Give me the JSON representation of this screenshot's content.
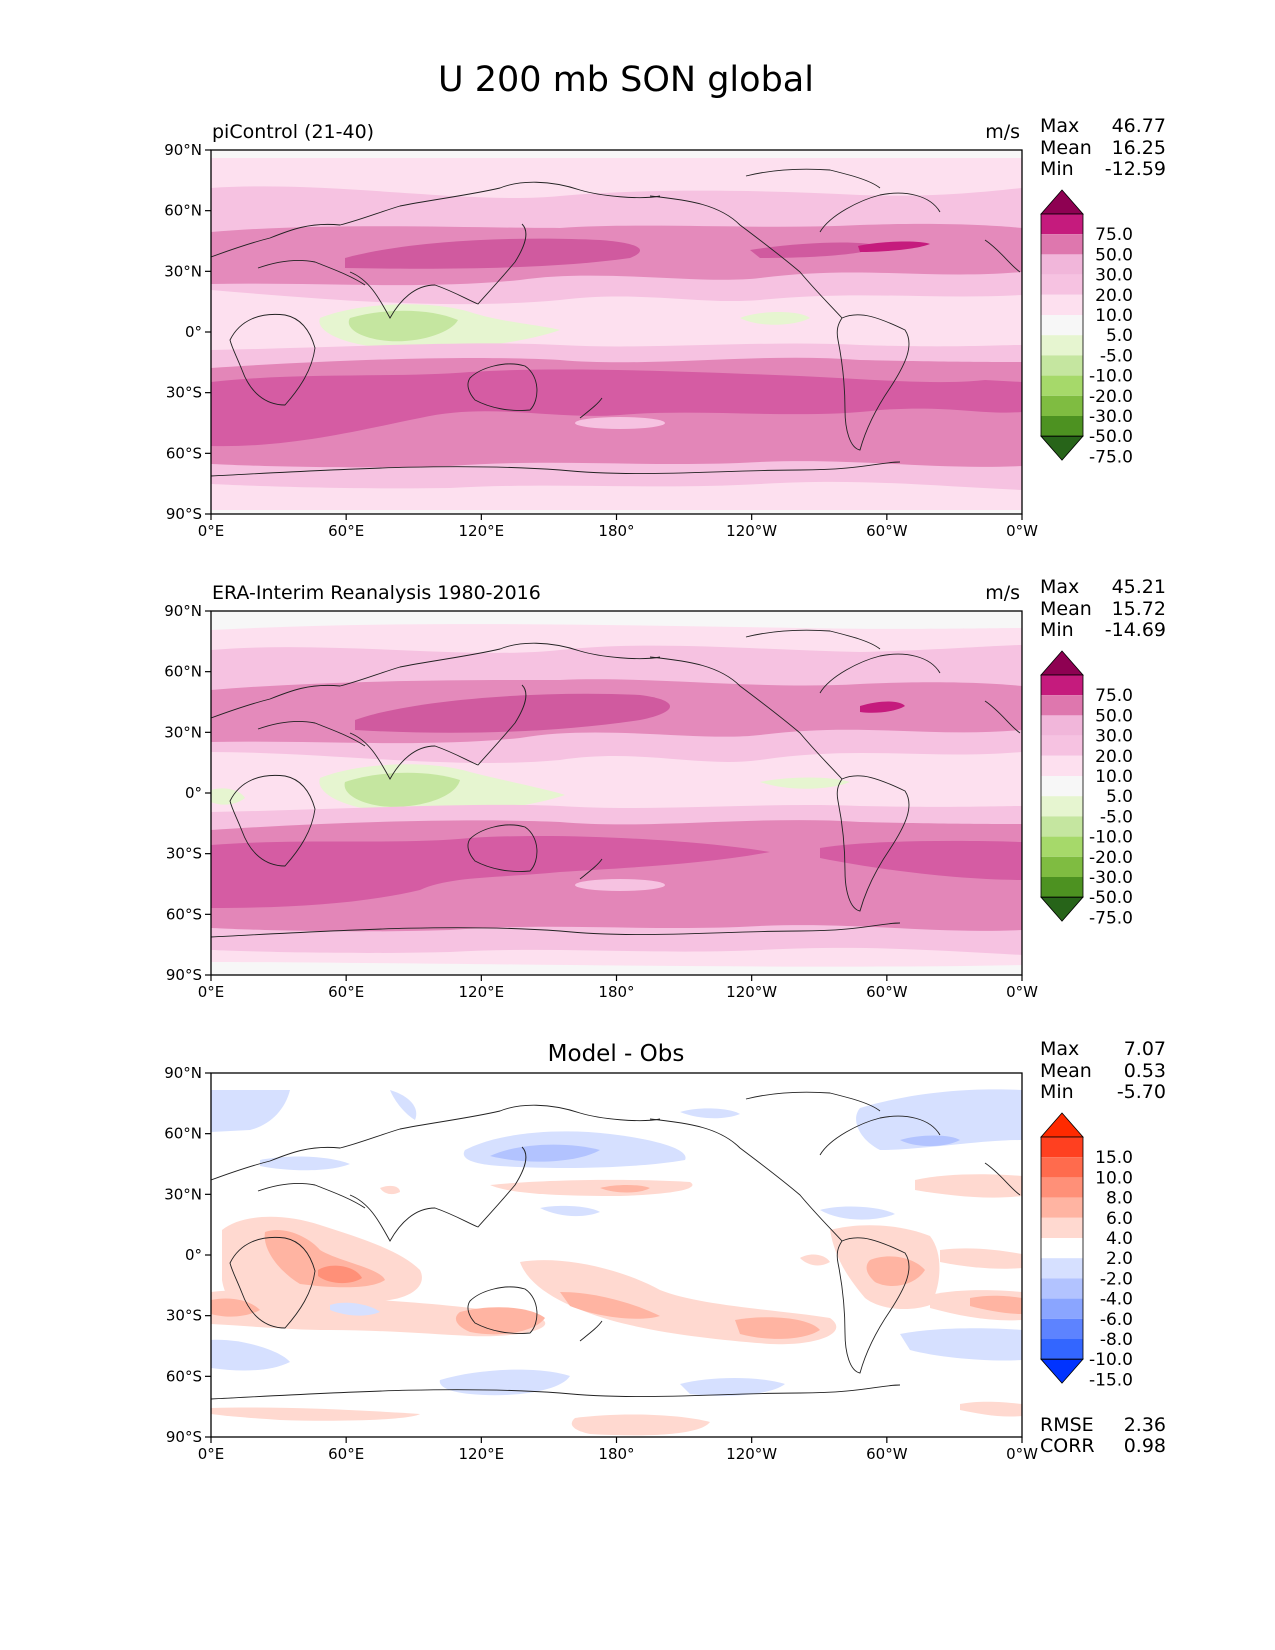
{
  "figure_title": "U 200 mb SON global",
  "colors": {
    "sequential": [
      "#276419",
      "#4d9221",
      "#7fbc41",
      "#a6d96a",
      "#c5e6a0",
      "#e6f5d0",
      "#f7f7f7",
      "#fde0ef",
      "#f6c2e1",
      "#f1b6da",
      "#de77ae",
      "#c51b7d",
      "#8e0152"
    ],
    "diverging": [
      "#0033ff",
      "#3366ff",
      "#5d83ff",
      "#8aa5ff",
      "#b2c3ff",
      "#d6e0ff",
      "#ffffff",
      "#ffd9d0",
      "#ffb4a2",
      "#ff9078",
      "#ff6b4d",
      "#ff4020",
      "#ff2a00"
    ]
  },
  "panels": [
    {
      "title": "piControl (21-40)",
      "units": "m/s",
      "stats": {
        "max_label": "Max",
        "max": "46.77",
        "mean_label": "Mean",
        "mean": "16.25",
        "min_label": "Min",
        "min": "-12.59"
      },
      "colorbar": [
        "75.0",
        "50.0",
        "30.0",
        "20.0",
        "10.0",
        "5.0",
        "-5.0",
        "-10.0",
        "-20.0",
        "-30.0",
        "-50.0",
        "-75.0"
      ]
    },
    {
      "title": "ERA-Interim Reanalysis 1980-2016",
      "units": "m/s",
      "stats": {
        "max_label": "Max",
        "max": "45.21",
        "mean_label": "Mean",
        "mean": "15.72",
        "min_label": "Min",
        "min": "-14.69"
      },
      "colorbar": [
        "75.0",
        "50.0",
        "30.0",
        "20.0",
        "10.0",
        "5.0",
        "-5.0",
        "-10.0",
        "-20.0",
        "-30.0",
        "-50.0",
        "-75.0"
      ]
    },
    {
      "title": "Model - Obs",
      "units": "",
      "stats": {
        "max_label": "Max",
        "max": "7.07",
        "mean_label": "Mean",
        "mean": "0.53",
        "min_label": "Min",
        "min": "-5.70"
      },
      "colorbar": [
        "15.0",
        "10.0",
        "8.0",
        "6.0",
        "4.0",
        "2.0",
        "-2.0",
        "-4.0",
        "-6.0",
        "-8.0",
        "-10.0",
        "-15.0"
      ],
      "rmse_label": "RMSE",
      "rmse": "2.36",
      "corr_label": "CORR",
      "corr": "0.98"
    }
  ],
  "axes": {
    "x_ticks": [
      "0°E",
      "60°E",
      "120°E",
      "180°",
      "120°W",
      "60°W",
      "0°W"
    ],
    "y_ticks": [
      "90°N",
      "60°N",
      "30°N",
      "0°",
      "30°S",
      "60°S",
      "90°S"
    ]
  },
  "chart_data": [
    {
      "type": "heatmap",
      "title": "piControl (21-40)",
      "variable": "U 200 mb",
      "season": "SON",
      "units": "m/s",
      "xlim": [
        0,
        360
      ],
      "ylim": [
        -90,
        90
      ],
      "levels": [
        -75,
        -50,
        -30,
        -20,
        -10,
        -5,
        5,
        10,
        20,
        30,
        50,
        75
      ],
      "max": 46.77,
      "mean": 16.25,
      "min": -12.59,
      "zonal_mean_approx": {
        "lat": [
          90,
          75,
          60,
          45,
          30,
          15,
          0,
          -15,
          -30,
          -45,
          -60,
          -75,
          -90
        ],
        "u": [
          0,
          8,
          12,
          22,
          27,
          8,
          -2,
          10,
          30,
          35,
          22,
          8,
          0
        ]
      }
    },
    {
      "type": "heatmap",
      "title": "ERA-Interim Reanalysis 1980-2016",
      "variable": "U 200 mb",
      "season": "SON",
      "units": "m/s",
      "xlim": [
        0,
        360
      ],
      "ylim": [
        -90,
        90
      ],
      "levels": [
        -75,
        -50,
        -30,
        -20,
        -10,
        -5,
        5,
        10,
        20,
        30,
        50,
        75
      ],
      "max": 45.21,
      "mean": 15.72,
      "min": -14.69,
      "zonal_mean_approx": {
        "lat": [
          90,
          75,
          60,
          45,
          30,
          15,
          0,
          -15,
          -30,
          -45,
          -60,
          -75,
          -90
        ],
        "u": [
          0,
          8,
          13,
          24,
          28,
          6,
          -3,
          10,
          30,
          34,
          22,
          8,
          0
        ]
      }
    },
    {
      "type": "heatmap",
      "title": "Model - Obs",
      "variable": "U 200 mb difference",
      "season": "SON",
      "xlim": [
        0,
        360
      ],
      "ylim": [
        -90,
        90
      ],
      "levels": [
        -15,
        -10,
        -8,
        -6,
        -4,
        -2,
        2,
        4,
        6,
        8,
        10,
        15
      ],
      "max": 7.07,
      "mean": 0.53,
      "min": -5.7,
      "rmse": 2.36,
      "corr": 0.98
    }
  ]
}
